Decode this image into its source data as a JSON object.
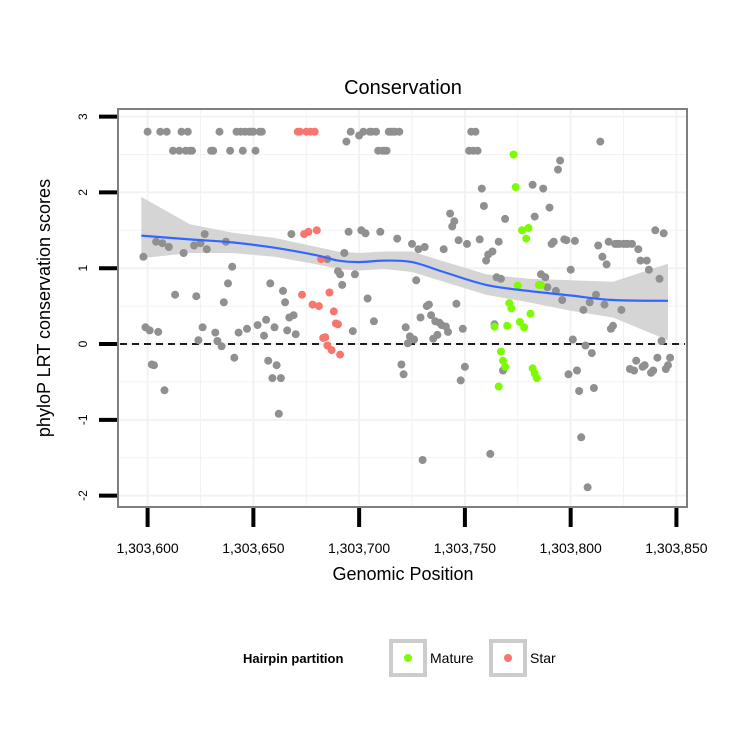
{
  "chart_data": {
    "type": "scatter",
    "title": "Conservation",
    "xlabel": "Genomic Position",
    "ylabel": "phyloP LRT conservation scores",
    "xlim": [
      1303586,
      1303855
    ],
    "ylim": [
      -2.15,
      3.1
    ],
    "x_ticks": [
      1303600,
      1303650,
      1303700,
      1303750,
      1303800,
      1303850
    ],
    "x_tick_labels": [
      "1,303,600",
      "1,303,650",
      "1,303,700",
      "1,303,750",
      "1,303,800",
      "1,303,850"
    ],
    "y_ticks": [
      3,
      2,
      1,
      0,
      -1,
      -2
    ],
    "y_tick_labels": [
      "3",
      "2",
      "1",
      "0",
      "-1",
      "-2"
    ],
    "reference_line": {
      "y": 0,
      "style": "dashed"
    },
    "legend": {
      "title": "Hairpin partition",
      "position": "bottom",
      "entries": [
        {
          "label": "Mature",
          "color": "#7cfc00"
        },
        {
          "label": "Star",
          "color": "#f8766d"
        }
      ]
    },
    "colors": {
      "other": "#909090",
      "mature": "#7cfc00",
      "star": "#f8766d",
      "smooth_line": "#3366ff",
      "confidence_band": "#d3d3d3",
      "panel_border": "#7f7f7f",
      "grid": "#f2f2f2"
    },
    "smooth": {
      "x": [
        1303597,
        1303620,
        1303640,
        1303660,
        1303680,
        1303690,
        1303700,
        1303712,
        1303725,
        1303740,
        1303760,
        1303780,
        1303800,
        1303820,
        1303846
      ],
      "y": [
        1.43,
        1.38,
        1.34,
        1.27,
        1.17,
        1.1,
        1.08,
        1.1,
        1.08,
        0.95,
        0.78,
        0.7,
        0.64,
        0.58,
        0.57
      ],
      "lower": [
        1.13,
        1.2,
        1.2,
        1.15,
        1.05,
        0.99,
        0.97,
        0.99,
        0.95,
        0.82,
        0.65,
        0.55,
        0.44,
        0.35,
        0.05
      ],
      "upper": [
        1.94,
        1.58,
        1.47,
        1.4,
        1.28,
        1.22,
        1.2,
        1.22,
        1.22,
        1.09,
        0.92,
        0.86,
        0.84,
        0.82,
        1.06
      ]
    },
    "series": [
      {
        "name": "Other",
        "points": [
          [
            1303598,
            1.15
          ],
          [
            1303599,
            0.22
          ],
          [
            1303600,
            2.8
          ],
          [
            1303601,
            0.18
          ],
          [
            1303602,
            -0.27
          ],
          [
            1303603,
            -0.28
          ],
          [
            1303604,
            1.35
          ],
          [
            1303605,
            0.16
          ],
          [
            1303606,
            2.8
          ],
          [
            1303607,
            1.33
          ],
          [
            1303608,
            -0.61
          ],
          [
            1303609,
            2.8
          ],
          [
            1303610,
            1.28
          ],
          [
            1303612,
            2.55
          ],
          [
            1303613,
            0.65
          ],
          [
            1303615,
            2.55
          ],
          [
            1303616,
            2.8
          ],
          [
            1303617,
            1.2
          ],
          [
            1303618,
            2.55
          ],
          [
            1303619,
            2.8
          ],
          [
            1303620,
            2.55
          ],
          [
            1303621,
            2.55
          ],
          [
            1303622,
            1.3
          ],
          [
            1303623,
            0.63
          ],
          [
            1303624,
            0.05
          ],
          [
            1303625,
            1.33
          ],
          [
            1303626,
            0.22
          ],
          [
            1303627,
            1.45
          ],
          [
            1303628,
            1.25
          ],
          [
            1303630,
            2.55
          ],
          [
            1303631,
            2.55
          ],
          [
            1303632,
            0.15
          ],
          [
            1303633,
            0.04
          ],
          [
            1303634,
            2.8
          ],
          [
            1303635,
            -0.03
          ],
          [
            1303636,
            0.55
          ],
          [
            1303637,
            1.35
          ],
          [
            1303638,
            0.8
          ],
          [
            1303639,
            2.55
          ],
          [
            1303640,
            1.02
          ],
          [
            1303641,
            -0.18
          ],
          [
            1303642,
            2.8
          ],
          [
            1303643,
            0.15
          ],
          [
            1303644,
            2.8
          ],
          [
            1303645,
            2.55
          ],
          [
            1303646,
            2.8
          ],
          [
            1303647,
            0.2
          ],
          [
            1303648,
            2.8
          ],
          [
            1303649,
            2.8
          ],
          [
            1303650,
            2.8
          ],
          [
            1303651,
            2.55
          ],
          [
            1303652,
            0.25
          ],
          [
            1303653,
            2.8
          ],
          [
            1303654,
            2.8
          ],
          [
            1303655,
            0.11
          ],
          [
            1303656,
            0.32
          ],
          [
            1303657,
            -0.22
          ],
          [
            1303658,
            0.8
          ],
          [
            1303659,
            -0.45
          ],
          [
            1303660,
            0.22
          ],
          [
            1303661,
            -0.28
          ],
          [
            1303662,
            -0.92
          ],
          [
            1303663,
            -0.45
          ],
          [
            1303664,
            0.7
          ],
          [
            1303665,
            0.55
          ],
          [
            1303666,
            0.18
          ],
          [
            1303667,
            0.35
          ],
          [
            1303668,
            1.45
          ],
          [
            1303669,
            0.38
          ],
          [
            1303670,
            0.13
          ],
          [
            1303685,
            1.12
          ],
          [
            1303690,
            0.96
          ],
          [
            1303691,
            0.92
          ],
          [
            1303692,
            0.78
          ],
          [
            1303693,
            1.2
          ],
          [
            1303694,
            2.67
          ],
          [
            1303695,
            1.48
          ],
          [
            1303696,
            2.8
          ],
          [
            1303697,
            0.17
          ],
          [
            1303698,
            0.92
          ],
          [
            1303700,
            2.75
          ],
          [
            1303701,
            1.5
          ],
          [
            1303702,
            2.8
          ],
          [
            1303703,
            1.46
          ],
          [
            1303704,
            0.6
          ],
          [
            1303705,
            2.8
          ],
          [
            1303706,
            2.8
          ],
          [
            1303707,
            0.3
          ],
          [
            1303708,
            2.8
          ],
          [
            1303709,
            2.55
          ],
          [
            1303710,
            1.48
          ],
          [
            1303711,
            2.55
          ],
          [
            1303712,
            2.55
          ],
          [
            1303713,
            2.55
          ],
          [
            1303714,
            2.8
          ],
          [
            1303715,
            2.8
          ],
          [
            1303716,
            2.8
          ],
          [
            1303717,
            2.8
          ],
          [
            1303718,
            1.39
          ],
          [
            1303719,
            2.8
          ],
          [
            1303720,
            -0.27
          ],
          [
            1303721,
            -0.4
          ],
          [
            1303722,
            0.22
          ],
          [
            1303723,
            0.01
          ],
          [
            1303724,
            0.1
          ],
          [
            1303725,
            1.32
          ],
          [
            1303726,
            0.06
          ],
          [
            1303727,
            0.84
          ],
          [
            1303728,
            1.25
          ],
          [
            1303729,
            0.35
          ],
          [
            1303730,
            -1.53
          ],
          [
            1303731,
            1.28
          ],
          [
            1303732,
            0.5
          ],
          [
            1303733,
            0.52
          ],
          [
            1303734,
            0.38
          ],
          [
            1303735,
            0.07
          ],
          [
            1303736,
            0.3
          ],
          [
            1303737,
            0.12
          ],
          [
            1303738,
            0.28
          ],
          [
            1303739,
            0.25
          ],
          [
            1303740,
            1.25
          ],
          [
            1303741,
            0.23
          ],
          [
            1303742,
            0.16
          ],
          [
            1303743,
            1.72
          ],
          [
            1303744,
            1.55
          ],
          [
            1303745,
            1.62
          ],
          [
            1303746,
            0.53
          ],
          [
            1303747,
            1.37
          ],
          [
            1303748,
            -0.48
          ],
          [
            1303749,
            0.2
          ],
          [
            1303750,
            -0.3
          ],
          [
            1303751,
            1.32
          ],
          [
            1303752,
            2.55
          ],
          [
            1303753,
            2.8
          ],
          [
            1303754,
            2.55
          ],
          [
            1303755,
            2.8
          ],
          [
            1303756,
            2.55
          ],
          [
            1303757,
            1.38
          ],
          [
            1303758,
            2.05
          ],
          [
            1303759,
            1.82
          ],
          [
            1303760,
            1.1
          ],
          [
            1303761,
            1.18
          ],
          [
            1303762,
            -1.45
          ],
          [
            1303763,
            1.22
          ],
          [
            1303764,
            0.26
          ],
          [
            1303765,
            0.88
          ],
          [
            1303766,
            1.35
          ],
          [
            1303767,
            0.86
          ],
          [
            1303768,
            -0.35
          ],
          [
            1303769,
            1.65
          ],
          [
            1303782,
            2.1
          ],
          [
            1303783,
            1.68
          ],
          [
            1303786,
            0.92
          ],
          [
            1303787,
            2.05
          ],
          [
            1303788,
            0.88
          ],
          [
            1303789,
            0.75
          ],
          [
            1303790,
            1.8
          ],
          [
            1303791,
            1.32
          ],
          [
            1303792,
            1.35
          ],
          [
            1303793,
            0.7
          ],
          [
            1303794,
            2.3
          ],
          [
            1303795,
            2.42
          ],
          [
            1303796,
            0.58
          ],
          [
            1303797,
            1.38
          ],
          [
            1303798,
            1.37
          ],
          [
            1303799,
            -0.4
          ],
          [
            1303800,
            0.98
          ],
          [
            1303801,
            0.06
          ],
          [
            1303802,
            1.36
          ],
          [
            1303803,
            -0.35
          ],
          [
            1303804,
            -0.62
          ],
          [
            1303805,
            -1.23
          ],
          [
            1303806,
            0.45
          ],
          [
            1303807,
            -0.02
          ],
          [
            1303808,
            -1.89
          ],
          [
            1303809,
            0.55
          ],
          [
            1303810,
            -0.12
          ],
          [
            1303811,
            -0.58
          ],
          [
            1303812,
            0.65
          ],
          [
            1303813,
            1.3
          ],
          [
            1303814,
            2.67
          ],
          [
            1303815,
            1.15
          ],
          [
            1303816,
            0.52
          ],
          [
            1303817,
            1.05
          ],
          [
            1303818,
            1.35
          ],
          [
            1303819,
            0.2
          ],
          [
            1303820,
            0.24
          ],
          [
            1303821,
            1.32
          ],
          [
            1303822,
            1.32
          ],
          [
            1303823,
            1.32
          ],
          [
            1303824,
            0.45
          ],
          [
            1303825,
            1.32
          ],
          [
            1303826,
            1.32
          ],
          [
            1303827,
            1.32
          ],
          [
            1303828,
            -0.33
          ],
          [
            1303829,
            1.32
          ],
          [
            1303830,
            -0.35
          ],
          [
            1303831,
            -0.22
          ],
          [
            1303832,
            1.25
          ],
          [
            1303833,
            1.1
          ],
          [
            1303834,
            -0.3
          ],
          [
            1303835,
            -0.28
          ],
          [
            1303836,
            1.1
          ],
          [
            1303837,
            0.98
          ],
          [
            1303838,
            -0.38
          ],
          [
            1303839,
            -0.35
          ],
          [
            1303840,
            1.5
          ],
          [
            1303841,
            -0.18
          ],
          [
            1303842,
            0.86
          ],
          [
            1303843,
            0.04
          ],
          [
            1303844,
            1.46
          ],
          [
            1303845,
            -0.33
          ],
          [
            1303846,
            -0.28
          ],
          [
            1303847,
            -0.18
          ]
        ]
      },
      {
        "name": "Mature",
        "points": [
          [
            1303764,
            0.23
          ],
          [
            1303766,
            -0.56
          ],
          [
            1303767,
            -0.1
          ],
          [
            1303768,
            -0.22
          ],
          [
            1303769,
            -0.3
          ],
          [
            1303770,
            0.24
          ],
          [
            1303771,
            0.54
          ],
          [
            1303772,
            0.47
          ],
          [
            1303773,
            2.5
          ],
          [
            1303774,
            2.07
          ],
          [
            1303775,
            0.77
          ],
          [
            1303776,
            0.29
          ],
          [
            1303777,
            1.5
          ],
          [
            1303778,
            0.22
          ],
          [
            1303779,
            1.39
          ],
          [
            1303780,
            1.53
          ],
          [
            1303781,
            0.4
          ],
          [
            1303782,
            -0.32
          ],
          [
            1303783,
            -0.39
          ],
          [
            1303784,
            -0.45
          ],
          [
            1303785,
            0.78
          ],
          [
            1303786,
            0.78
          ]
        ]
      },
      {
        "name": "Star",
        "points": [
          [
            1303671,
            2.8
          ],
          [
            1303672,
            2.8
          ],
          [
            1303673,
            0.65
          ],
          [
            1303674,
            1.45
          ],
          [
            1303675,
            2.8
          ],
          [
            1303676,
            1.48
          ],
          [
            1303677,
            2.8
          ],
          [
            1303678,
            0.52
          ],
          [
            1303679,
            2.8
          ],
          [
            1303680,
            1.5
          ],
          [
            1303681,
            0.5
          ],
          [
            1303682,
            1.12
          ],
          [
            1303683,
            0.08
          ],
          [
            1303684,
            0.09
          ],
          [
            1303685,
            -0.02
          ],
          [
            1303686,
            0.68
          ],
          [
            1303687,
            -0.08
          ],
          [
            1303688,
            0.43
          ],
          [
            1303689,
            0.27
          ],
          [
            1303690,
            0.26
          ],
          [
            1303691,
            -0.14
          ]
        ]
      }
    ]
  }
}
